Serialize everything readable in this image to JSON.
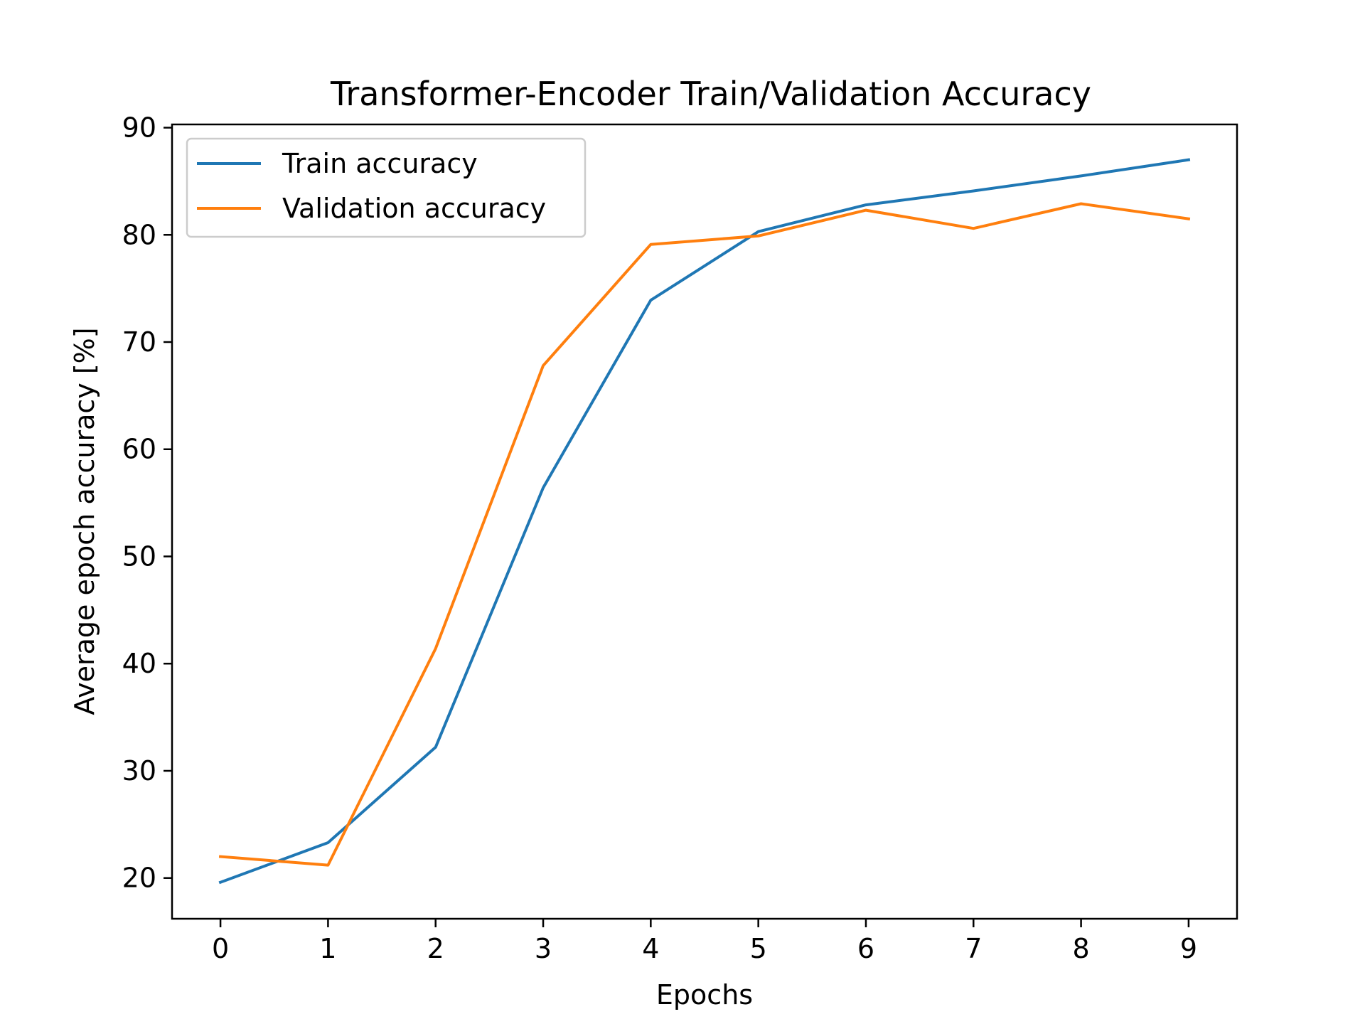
{
  "chart_data": {
    "type": "line",
    "title": "Transformer-Encoder Train/Validation Accuracy",
    "xlabel": "Epochs",
    "ylabel": "Average epoch accuracy [%]",
    "x": [
      0,
      1,
      2,
      3,
      4,
      5,
      6,
      7,
      8,
      9
    ],
    "xlim": [
      -0.45,
      9.45
    ],
    "ylim": [
      16.2,
      90.3
    ],
    "xticks": [
      0,
      1,
      2,
      3,
      4,
      5,
      6,
      7,
      8,
      9
    ],
    "yticks": [
      20,
      30,
      40,
      50,
      60,
      70,
      80,
      90
    ],
    "grid": false,
    "legend_position": "top-left",
    "series": [
      {
        "name": "Train accuracy",
        "color": "#1f77b4",
        "values": [
          19.6,
          23.3,
          32.2,
          56.4,
          73.9,
          80.3,
          82.8,
          84.1,
          85.5,
          87.0
        ]
      },
      {
        "name": "Validation accuracy",
        "color": "#ff7f0e",
        "values": [
          22.0,
          21.2,
          41.4,
          67.8,
          79.1,
          79.9,
          82.3,
          80.6,
          82.9,
          81.5
        ]
      }
    ]
  }
}
